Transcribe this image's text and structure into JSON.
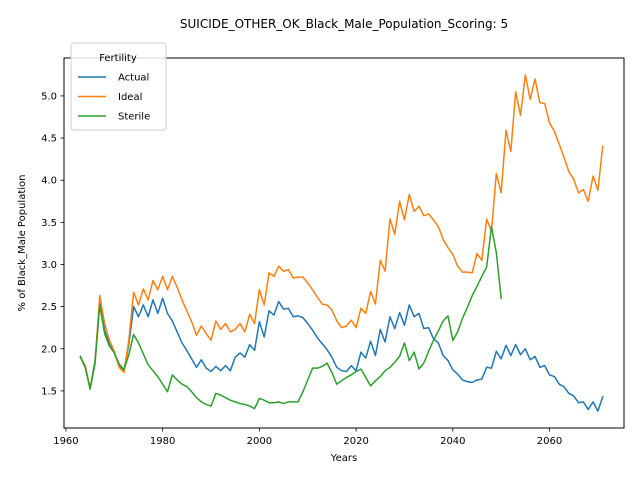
{
  "chart_data": {
    "type": "line",
    "title": "SUICIDE_OTHER_OK_Black_Male_Population_Scoring: 5",
    "xlabel": "Years",
    "ylabel": "% of Black_Male Population",
    "xlim": [
      1959.6,
      2075.4
    ],
    "ylim": [
      1.06,
      5.45
    ],
    "xticks": [
      1960,
      1980,
      2000,
      2020,
      2040,
      2060
    ],
    "yticks": [
      1.5,
      2.0,
      2.5,
      3.0,
      3.5,
      4.0,
      4.5,
      5.0
    ],
    "grid": false,
    "legend": {
      "title": "Fertility",
      "placement": "top-left"
    },
    "series": [
      {
        "name": "Actual",
        "color": "#1f77b4",
        "points": [
          [
            1963,
            1.91
          ],
          [
            1964,
            1.78
          ],
          [
            1965,
            1.53
          ],
          [
            1966,
            1.85
          ],
          [
            1967,
            2.55
          ],
          [
            1968,
            2.22
          ],
          [
            1969,
            2.05
          ],
          [
            1970,
            1.95
          ],
          [
            1971,
            1.8
          ],
          [
            1972,
            1.75
          ],
          [
            1973,
            2.05
          ],
          [
            1974,
            2.5
          ],
          [
            1975,
            2.38
          ],
          [
            1976,
            2.52
          ],
          [
            1977,
            2.38
          ],
          [
            1978,
            2.58
          ],
          [
            1979,
            2.42
          ],
          [
            1980,
            2.6
          ],
          [
            1981,
            2.42
          ],
          [
            1982,
            2.33
          ],
          [
            1983,
            2.2
          ],
          [
            1984,
            2.07
          ],
          [
            1985,
            1.98
          ],
          [
            1986,
            1.88
          ],
          [
            1987,
            1.78
          ],
          [
            1988,
            1.87
          ],
          [
            1989,
            1.77
          ],
          [
            1990,
            1.73
          ],
          [
            1991,
            1.79
          ],
          [
            1992,
            1.74
          ],
          [
            1993,
            1.8
          ],
          [
            1994,
            1.74
          ],
          [
            1995,
            1.9
          ],
          [
            1996,
            1.95
          ],
          [
            1997,
            1.9
          ],
          [
            1998,
            2.05
          ],
          [
            1999,
            1.98
          ],
          [
            2000,
            2.32
          ],
          [
            2001,
            2.14
          ],
          [
            2002,
            2.45
          ],
          [
            2003,
            2.4
          ],
          [
            2004,
            2.56
          ],
          [
            2005,
            2.47
          ],
          [
            2006,
            2.48
          ],
          [
            2007,
            2.38
          ],
          [
            2008,
            2.39
          ],
          [
            2009,
            2.37
          ],
          [
            2010,
            2.3
          ],
          [
            2011,
            2.22
          ],
          [
            2012,
            2.13
          ],
          [
            2013,
            2.06
          ],
          [
            2014,
            1.99
          ],
          [
            2015,
            1.9
          ],
          [
            2016,
            1.78
          ],
          [
            2017,
            1.74
          ],
          [
            2018,
            1.73
          ],
          [
            2019,
            1.8
          ],
          [
            2020,
            1.74
          ],
          [
            2021,
            1.96
          ],
          [
            2022,
            1.89
          ],
          [
            2023,
            2.09
          ],
          [
            2024,
            1.92
          ],
          [
            2025,
            2.23
          ],
          [
            2026,
            2.08
          ],
          [
            2027,
            2.38
          ],
          [
            2028,
            2.24
          ],
          [
            2029,
            2.43
          ],
          [
            2030,
            2.28
          ],
          [
            2031,
            2.52
          ],
          [
            2032,
            2.38
          ],
          [
            2033,
            2.42
          ],
          [
            2034,
            2.24
          ],
          [
            2035,
            2.25
          ],
          [
            2036,
            2.12
          ],
          [
            2037,
            2.07
          ],
          [
            2038,
            1.92
          ],
          [
            2039,
            1.86
          ],
          [
            2040,
            1.75
          ],
          [
            2041,
            1.7
          ],
          [
            2042,
            1.63
          ],
          [
            2043,
            1.61
          ],
          [
            2044,
            1.6
          ],
          [
            2045,
            1.63
          ],
          [
            2046,
            1.64
          ],
          [
            2047,
            1.78
          ],
          [
            2048,
            1.77
          ],
          [
            2049,
            1.97
          ],
          [
            2050,
            1.88
          ],
          [
            2051,
            2.04
          ],
          [
            2052,
            1.92
          ],
          [
            2053,
            2.05
          ],
          [
            2054,
            1.93
          ],
          [
            2055,
            2.0
          ],
          [
            2056,
            1.87
          ],
          [
            2057,
            1.91
          ],
          [
            2058,
            1.78
          ],
          [
            2059,
            1.8
          ],
          [
            2060,
            1.69
          ],
          [
            2061,
            1.67
          ],
          [
            2062,
            1.58
          ],
          [
            2063,
            1.55
          ],
          [
            2064,
            1.47
          ],
          [
            2065,
            1.44
          ],
          [
            2066,
            1.36
          ],
          [
            2067,
            1.37
          ],
          [
            2068,
            1.28
          ],
          [
            2069,
            1.37
          ],
          [
            2070,
            1.26
          ],
          [
            2071,
            1.43
          ]
        ]
      },
      {
        "name": "Ideal",
        "color": "#ff7f0e",
        "points": [
          [
            1963,
            1.9
          ],
          [
            1964,
            1.8
          ],
          [
            1965,
            1.53
          ],
          [
            1966,
            1.82
          ],
          [
            1967,
            2.63
          ],
          [
            1968,
            2.3
          ],
          [
            1969,
            2.1
          ],
          [
            1970,
            1.97
          ],
          [
            1971,
            1.78
          ],
          [
            1972,
            1.72
          ],
          [
            1973,
            2.1
          ],
          [
            1974,
            2.67
          ],
          [
            1975,
            2.52
          ],
          [
            1976,
            2.71
          ],
          [
            1977,
            2.58
          ],
          [
            1978,
            2.81
          ],
          [
            1979,
            2.7
          ],
          [
            1980,
            2.86
          ],
          [
            1981,
            2.7
          ],
          [
            1982,
            2.86
          ],
          [
            1983,
            2.73
          ],
          [
            1984,
            2.58
          ],
          [
            1985,
            2.45
          ],
          [
            1986,
            2.32
          ],
          [
            1987,
            2.16
          ],
          [
            1988,
            2.27
          ],
          [
            1989,
            2.18
          ],
          [
            1990,
            2.1
          ],
          [
            1991,
            2.33
          ],
          [
            1992,
            2.23
          ],
          [
            1993,
            2.3
          ],
          [
            1994,
            2.2
          ],
          [
            1995,
            2.23
          ],
          [
            1996,
            2.3
          ],
          [
            1997,
            2.2
          ],
          [
            1998,
            2.41
          ],
          [
            1999,
            2.3
          ],
          [
            2000,
            2.7
          ],
          [
            2001,
            2.52
          ],
          [
            2002,
            2.9
          ],
          [
            2003,
            2.86
          ],
          [
            2004,
            2.98
          ],
          [
            2005,
            2.92
          ],
          [
            2006,
            2.94
          ],
          [
            2007,
            2.84
          ],
          [
            2008,
            2.85
          ],
          [
            2009,
            2.85
          ],
          [
            2010,
            2.78
          ],
          [
            2011,
            2.7
          ],
          [
            2012,
            2.61
          ],
          [
            2013,
            2.53
          ],
          [
            2014,
            2.52
          ],
          [
            2015,
            2.46
          ],
          [
            2016,
            2.33
          ],
          [
            2017,
            2.25
          ],
          [
            2018,
            2.27
          ],
          [
            2019,
            2.34
          ],
          [
            2020,
            2.25
          ],
          [
            2021,
            2.48
          ],
          [
            2022,
            2.42
          ],
          [
            2023,
            2.68
          ],
          [
            2024,
            2.53
          ],
          [
            2025,
            3.05
          ],
          [
            2026,
            2.92
          ],
          [
            2027,
            3.54
          ],
          [
            2028,
            3.36
          ],
          [
            2029,
            3.75
          ],
          [
            2030,
            3.53
          ],
          [
            2031,
            3.83
          ],
          [
            2032,
            3.63
          ],
          [
            2033,
            3.69
          ],
          [
            2034,
            3.58
          ],
          [
            2035,
            3.6
          ],
          [
            2036,
            3.53
          ],
          [
            2037,
            3.45
          ],
          [
            2038,
            3.3
          ],
          [
            2039,
            3.2
          ],
          [
            2040,
            3.12
          ],
          [
            2041,
            2.98
          ],
          [
            2042,
            2.91
          ],
          [
            2043,
            2.91
          ],
          [
            2044,
            2.9
          ],
          [
            2045,
            3.13
          ],
          [
            2046,
            3.05
          ],
          [
            2047,
            3.54
          ],
          [
            2048,
            3.4
          ],
          [
            2049,
            4.08
          ],
          [
            2050,
            3.85
          ],
          [
            2051,
            4.59
          ],
          [
            2052,
            4.34
          ],
          [
            2053,
            5.05
          ],
          [
            2054,
            4.77
          ],
          [
            2055,
            5.25
          ],
          [
            2056,
            4.96
          ],
          [
            2057,
            5.2
          ],
          [
            2058,
            4.92
          ],
          [
            2059,
            4.91
          ],
          [
            2060,
            4.68
          ],
          [
            2061,
            4.58
          ],
          [
            2062,
            4.43
          ],
          [
            2063,
            4.27
          ],
          [
            2064,
            4.1
          ],
          [
            2065,
            4.01
          ],
          [
            2066,
            3.85
          ],
          [
            2067,
            3.89
          ],
          [
            2068,
            3.75
          ],
          [
            2069,
            4.05
          ],
          [
            2070,
            3.88
          ],
          [
            2071,
            4.4
          ]
        ]
      },
      {
        "name": "Sterile",
        "color": "#2ca02c",
        "points": [
          [
            1963,
            1.9
          ],
          [
            1964,
            1.78
          ],
          [
            1965,
            1.52
          ],
          [
            1966,
            1.82
          ],
          [
            1967,
            2.52
          ],
          [
            1968,
            2.18
          ],
          [
            1969,
            2.03
          ],
          [
            1970,
            1.95
          ],
          [
            1971,
            1.82
          ],
          [
            1972,
            1.75
          ],
          [
            1973,
            1.93
          ],
          [
            1974,
            2.17
          ],
          [
            1975,
            2.07
          ],
          [
            1976,
            1.94
          ],
          [
            1977,
            1.81
          ],
          [
            1978,
            1.74
          ],
          [
            1979,
            1.67
          ],
          [
            1980,
            1.58
          ],
          [
            1981,
            1.49
          ],
          [
            1982,
            1.69
          ],
          [
            1983,
            1.63
          ],
          [
            1984,
            1.58
          ],
          [
            1985,
            1.55
          ],
          [
            1986,
            1.49
          ],
          [
            1987,
            1.42
          ],
          [
            1988,
            1.37
          ],
          [
            1989,
            1.34
          ],
          [
            1990,
            1.32
          ],
          [
            1991,
            1.47
          ],
          [
            1992,
            1.45
          ],
          [
            1993,
            1.42
          ],
          [
            1994,
            1.39
          ],
          [
            1995,
            1.37
          ],
          [
            1996,
            1.35
          ],
          [
            1997,
            1.34
          ],
          [
            1998,
            1.32
          ],
          [
            1999,
            1.29
          ],
          [
            2000,
            1.41
          ],
          [
            2001,
            1.39
          ],
          [
            2002,
            1.36
          ],
          [
            2003,
            1.36
          ],
          [
            2004,
            1.37
          ],
          [
            2005,
            1.35
          ],
          [
            2006,
            1.37
          ],
          [
            2007,
            1.37
          ],
          [
            2008,
            1.37
          ],
          [
            2009,
            1.49
          ],
          [
            2010,
            1.63
          ],
          [
            2011,
            1.77
          ],
          [
            2012,
            1.77
          ],
          [
            2013,
            1.79
          ],
          [
            2014,
            1.83
          ],
          [
            2015,
            1.72
          ],
          [
            2016,
            1.58
          ],
          [
            2017,
            1.62
          ],
          [
            2018,
            1.66
          ],
          [
            2019,
            1.69
          ],
          [
            2020,
            1.73
          ],
          [
            2021,
            1.76
          ],
          [
            2022,
            1.66
          ],
          [
            2023,
            1.56
          ],
          [
            2024,
            1.62
          ],
          [
            2025,
            1.67
          ],
          [
            2026,
            1.74
          ],
          [
            2027,
            1.78
          ],
          [
            2028,
            1.84
          ],
          [
            2029,
            1.91
          ],
          [
            2030,
            2.07
          ],
          [
            2031,
            1.86
          ],
          [
            2032,
            1.96
          ],
          [
            2033,
            1.76
          ],
          [
            2034,
            1.83
          ],
          [
            2035,
            1.97
          ],
          [
            2036,
            2.1
          ],
          [
            2037,
            2.21
          ],
          [
            2038,
            2.33
          ],
          [
            2039,
            2.39
          ],
          [
            2040,
            2.1
          ],
          [
            2041,
            2.2
          ],
          [
            2042,
            2.36
          ],
          [
            2043,
            2.49
          ],
          [
            2044,
            2.63
          ],
          [
            2045,
            2.74
          ],
          [
            2046,
            2.86
          ],
          [
            2047,
            2.97
          ],
          [
            2048,
            3.45
          ],
          [
            2049,
            3.14
          ],
          [
            2050,
            2.6
          ]
        ]
      }
    ]
  }
}
